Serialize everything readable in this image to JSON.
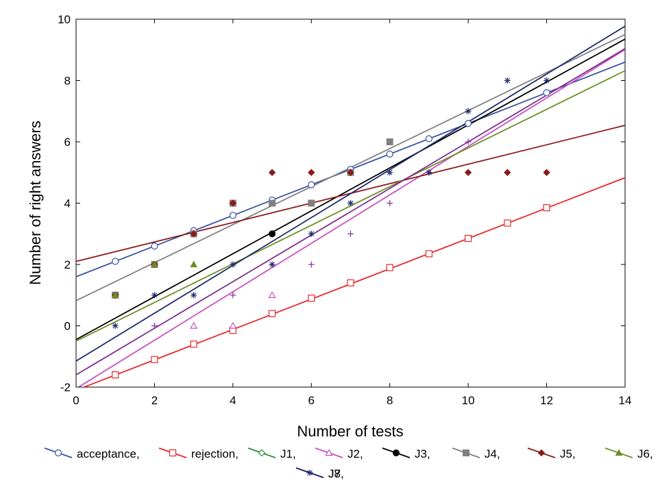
{
  "chart_data": {
    "type": "scatter",
    "xlabel": "Number of tests",
    "ylabel": "Number of right answers",
    "xlim": [
      0,
      14
    ],
    "ylim": [
      -2,
      10
    ],
    "xticks": [
      0,
      2,
      4,
      6,
      8,
      10,
      12,
      14
    ],
    "yticks": [
      -2,
      0,
      2,
      4,
      6,
      8,
      10
    ],
    "grid": false,
    "legend_position": "bottom",
    "series": [
      {
        "name": "acceptance,",
        "color": "#3a53a4",
        "marker": "circle-open",
        "x": [
          1,
          2,
          3,
          4,
          5,
          6,
          7,
          8,
          9,
          10,
          12
        ],
        "y": [
          2.1,
          2.6,
          3.1,
          3.6,
          4.1,
          4.6,
          5.1,
          5.6,
          6.1,
          6.6,
          7.6
        ],
        "fit": [
          1.6,
          0.5
        ]
      },
      {
        "name": "rejection,",
        "color": "#e8282b",
        "marker": "square-open",
        "x": [
          1,
          2,
          3,
          4,
          5,
          6,
          7,
          8,
          9,
          10,
          11,
          12
        ],
        "y": [
          -1.6,
          -1.1,
          -0.6,
          -0.15,
          0.4,
          0.9,
          1.4,
          1.9,
          2.35,
          2.85,
          3.35,
          3.85
        ],
        "fit": [
          -2.1,
          0.495
        ]
      },
      {
        "name": "J1,",
        "color": "#2e8b3a",
        "marker": "diamond-open",
        "x": [],
        "y": [],
        "fit": null
      },
      {
        "name": "J2,",
        "color": "#c84fc0",
        "marker": "triangle-open",
        "x": [
          1,
          2,
          3,
          4,
          5
        ],
        "y": [
          1,
          2,
          0,
          0,
          1
        ],
        "fit": [
          -2.05,
          0.79
        ]
      },
      {
        "name": "J3,",
        "color": "#000000",
        "marker": "circle-filled",
        "x": [
          1,
          2,
          3,
          4,
          5,
          7
        ],
        "y": [
          1,
          2,
          3,
          4,
          3,
          5
        ],
        "fit": [
          -0.45,
          0.7
        ]
      },
      {
        "name": "J4,",
        "color": "#808080",
        "marker": "square-filled",
        "x": [
          1,
          2,
          3,
          4,
          5,
          6,
          7,
          8
        ],
        "y": [
          1,
          2,
          3,
          4,
          4,
          4,
          5,
          6
        ],
        "fit": [
          0.82,
          0.62
        ]
      },
      {
        "name": "J5,",
        "color": "#8b1a1a",
        "marker": "diamond-filled",
        "x": [
          1,
          2,
          3,
          4,
          5,
          6,
          7,
          10,
          11,
          12
        ],
        "y": [
          1,
          2,
          3,
          4,
          5,
          5,
          5,
          5,
          5,
          5
        ],
        "fit": [
          2.1,
          0.317
        ]
      },
      {
        "name": "J6,",
        "color": "#6b8e23",
        "marker": "triangle-filled",
        "x": [
          1,
          2,
          3
        ],
        "y": [
          1,
          2,
          2
        ],
        "fit": [
          -0.5,
          0.63
        ]
      },
      {
        "name": "J7,",
        "color": "#7b2d8e",
        "marker": "plus",
        "x": [
          2,
          4,
          5,
          6,
          7,
          8,
          9,
          10
        ],
        "y": [
          0,
          1,
          2,
          2,
          3,
          4,
          5,
          6
        ],
        "fit": [
          -1.6,
          0.76
        ]
      },
      {
        "name": "J8",
        "color": "#1f2a6b",
        "marker": "asterisk",
        "x": [
          1,
          2,
          3,
          4,
          5,
          6,
          7,
          8,
          9,
          10,
          11,
          12
        ],
        "y": [
          0,
          1,
          1,
          2,
          2,
          3,
          4,
          5,
          5,
          7,
          8,
          8
        ],
        "fit": [
          -1.15,
          0.78
        ]
      }
    ]
  }
}
